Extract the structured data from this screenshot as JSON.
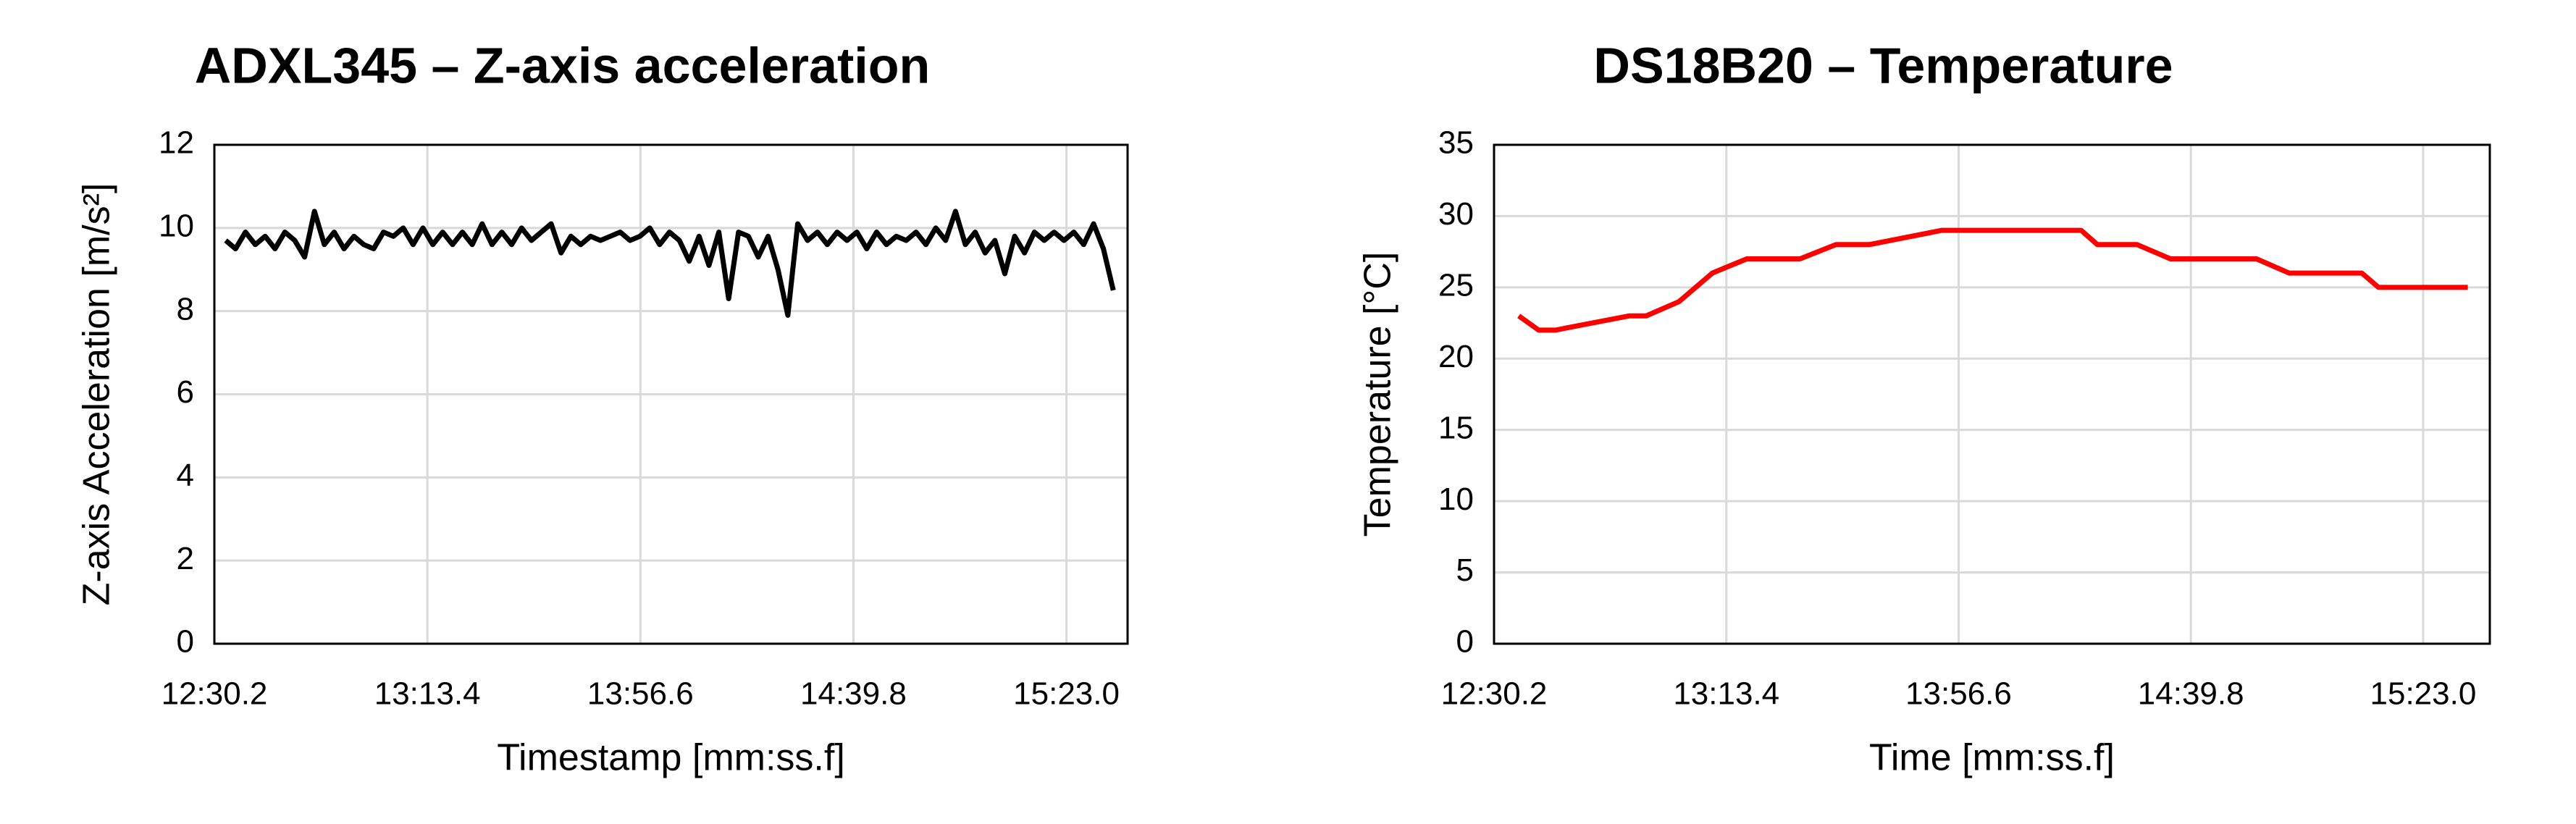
{
  "chart_data": [
    {
      "type": "line",
      "title": "ADXL345 – Z-axis acceleration",
      "x_label": "Timestamp [mm:ss.f]",
      "y_label": "Z-axis Acceleration [m/s²]",
      "color": "#000000",
      "grid": true,
      "xlim": [
        750.2,
        935.4
      ],
      "xticks": [
        {
          "value": 750.2,
          "label": "12:30.2"
        },
        {
          "value": 793.4,
          "label": "13:13.4"
        },
        {
          "value": 836.6,
          "label": "13:56.6"
        },
        {
          "value": 879.8,
          "label": "14:39.8"
        },
        {
          "value": 923.0,
          "label": "15:23.0"
        }
      ],
      "ylim": [
        0,
        12
      ],
      "yticks": [
        0,
        2,
        4,
        6,
        8,
        10,
        12
      ],
      "x": [
        752.5,
        754.5,
        756.5,
        758.5,
        760.5,
        762.5,
        764.5,
        766.5,
        768.5,
        770.5,
        772.5,
        774.5,
        776.5,
        778.5,
        780.5,
        782.5,
        784.5,
        786.5,
        788.5,
        790.5,
        792.5,
        794.5,
        796.5,
        798.5,
        800.5,
        802.5,
        804.5,
        806.5,
        808.5,
        810.5,
        812.5,
        814.5,
        816.5,
        818.5,
        820.5,
        822.5,
        824.5,
        826.5,
        828.5,
        830.5,
        832.5,
        834.5,
        836.5,
        838.5,
        840.5,
        842.5,
        844.5,
        846.5,
        848.5,
        850.5,
        852.5,
        854.5,
        856.5,
        858.5,
        860.5,
        862.5,
        864.5,
        866.5,
        868.5,
        870.5,
        872.5,
        874.5,
        876.5,
        878.5,
        880.5,
        882.5,
        884.5,
        886.5,
        888.5,
        890.5,
        892.5,
        894.5,
        896.5,
        898.5,
        900.5,
        902.5,
        904.5,
        906.5,
        908.5,
        910.5,
        912.5,
        914.5,
        916.5,
        918.5,
        920.5,
        922.5,
        924.5,
        926.5,
        928.5,
        930.5,
        932.5
      ],
      "values": [
        9.7,
        9.5,
        9.9,
        9.6,
        9.8,
        9.5,
        9.9,
        9.7,
        9.3,
        10.4,
        9.6,
        9.9,
        9.5,
        9.8,
        9.6,
        9.5,
        9.9,
        9.8,
        10.0,
        9.6,
        10.0,
        9.6,
        9.9,
        9.6,
        9.9,
        9.6,
        10.1,
        9.6,
        9.9,
        9.6,
        10.0,
        9.7,
        9.9,
        10.1,
        9.4,
        9.8,
        9.6,
        9.8,
        9.7,
        9.8,
        9.9,
        9.7,
        9.8,
        10.0,
        9.6,
        9.9,
        9.7,
        9.2,
        9.8,
        9.1,
        9.9,
        8.3,
        9.9,
        9.8,
        9.3,
        9.8,
        9.0,
        7.9,
        10.1,
        9.7,
        9.9,
        9.6,
        9.9,
        9.7,
        9.9,
        9.5,
        9.9,
        9.6,
        9.8,
        9.7,
        9.9,
        9.6,
        10.0,
        9.7,
        10.4,
        9.6,
        9.9,
        9.4,
        9.7,
        8.9,
        9.8,
        9.4,
        9.9,
        9.7,
        9.9,
        9.7,
        9.9,
        9.6,
        10.1,
        9.5,
        8.5
      ]
    },
    {
      "type": "line",
      "title": "DS18B20 – Temperature",
      "x_label": "Time [mm:ss.f]",
      "y_label": "Temperature [°C]",
      "color": "#ff0000",
      "grid": true,
      "xlim": [
        750.2,
        935.4
      ],
      "xticks": [
        {
          "value": 750.2,
          "label": "12:30.2"
        },
        {
          "value": 793.4,
          "label": "13:13.4"
        },
        {
          "value": 836.6,
          "label": "13:56.6"
        },
        {
          "value": 879.8,
          "label": "14:39.8"
        },
        {
          "value": 923.0,
          "label": "15:23.0"
        }
      ],
      "ylim": [
        0,
        35
      ],
      "yticks": [
        0,
        5,
        10,
        15,
        20,
        25,
        30,
        35
      ],
      "x": [
        754.8,
        758.5,
        761.6,
        775.4,
        778.5,
        784.6,
        790.8,
        797.2,
        807.1,
        813.8,
        820.0,
        833.5,
        859.4,
        862.4,
        869.8,
        876.0,
        892.0,
        898.1,
        911.6,
        914.7,
        931.3
      ],
      "values": [
        23,
        22,
        22,
        23,
        23,
        24,
        26,
        27,
        27,
        28,
        28,
        29,
        29,
        28,
        28,
        27,
        27,
        26,
        26,
        25,
        25
      ]
    }
  ]
}
